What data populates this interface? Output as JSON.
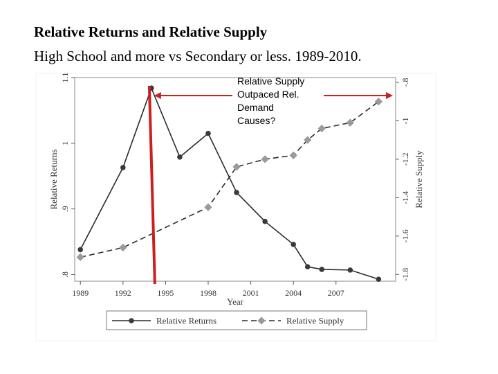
{
  "title": "Relative Returns and Relative Supply",
  "subtitle": "High School and more vs Secondary or less. 1989-2010.",
  "annotation": {
    "lines": [
      "Relative Supply",
      "Outpaced Rel.",
      "Demand",
      "Causes?"
    ],
    "arrow_color": "#cc1f1f",
    "marker_year": 1994
  },
  "chart_data": {
    "type": "line",
    "xlabel": "Year",
    "x_ticks": [
      1989,
      1992,
      1995,
      1998,
      2001,
      2004,
      2007
    ],
    "xlim": [
      1988.6,
      2011.2
    ],
    "grid": false,
    "legend_position": "bottom",
    "left_axis": {
      "label": "Relative Returns",
      "ylim": [
        0.79,
        1.1
      ],
      "ticks": [
        0.8,
        0.9,
        1,
        1.1
      ],
      "tick_labels": [
        ".8",
        ".9",
        "1",
        "1.1"
      ]
    },
    "right_axis": {
      "label": "Relative Supply",
      "ylim": [
        -1.835,
        -0.775
      ],
      "ticks": [
        -1.8,
        -1.6,
        -1.4,
        -1.2,
        -1,
        -0.8
      ],
      "tick_labels": [
        "-1.8",
        "-1.6",
        "-1.4",
        "-1.2",
        "-1",
        "-.8"
      ]
    },
    "series": [
      {
        "name": "Relative Returns",
        "axis": "left",
        "style": "solid",
        "color": "#3a3a3a",
        "x": [
          1989,
          1992,
          1994,
          1996,
          1998,
          2000,
          2002,
          2004,
          2005,
          2006,
          2008,
          2010
        ],
        "y": [
          0.838,
          0.963,
          1.084,
          0.979,
          1.015,
          0.925,
          0.881,
          0.846,
          0.812,
          0.808,
          0.807,
          0.793
        ]
      },
      {
        "name": "Relative Supply",
        "axis": "right",
        "style": "dashed",
        "color": "#9a9a9a",
        "x": [
          1989,
          1992,
          1998,
          2000,
          2002,
          2004,
          2005,
          2006,
          2008,
          2010
        ],
        "y": [
          -1.71,
          -1.66,
          -1.45,
          -1.24,
          -1.2,
          -1.18,
          -1.1,
          -1.04,
          -1.01,
          -0.9
        ]
      }
    ]
  }
}
